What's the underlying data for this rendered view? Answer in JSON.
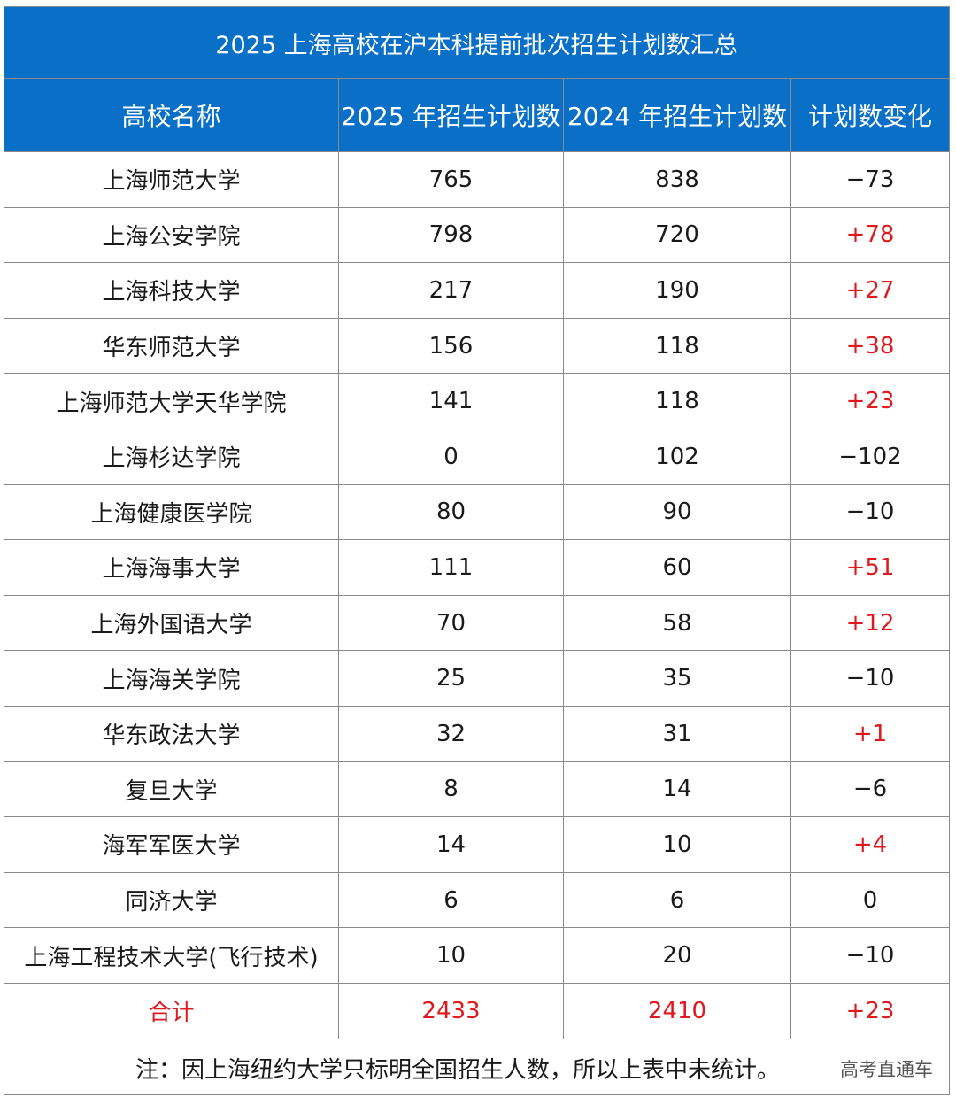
{
  "title": "2025 上海高校在沪本科提前批次招生计划数汇总",
  "headers": [
    "高校名称",
    "2025 年招生计划数",
    "2024 年招生计划数",
    "计划数变化"
  ],
  "rows": [
    {
      "name": "上海师范大学",
      "y2025": "765",
      "y2024": "838",
      "change": "−73",
      "positive": false
    },
    {
      "name": "上海公安学院",
      "y2025": "798",
      "y2024": "720",
      "change": "+78",
      "positive": true
    },
    {
      "name": "上海科技大学",
      "y2025": "217",
      "y2024": "190",
      "change": "+27",
      "positive": true
    },
    {
      "name": "华东师范大学",
      "y2025": "156",
      "y2024": "118",
      "change": "+38",
      "positive": true
    },
    {
      "name": "上海师范大学天华学院",
      "y2025": "141",
      "y2024": "118",
      "change": "+23",
      "positive": true
    },
    {
      "name": "上海杉达学院",
      "y2025": "0",
      "y2024": "102",
      "change": "−102",
      "positive": false
    },
    {
      "name": "上海健康医学院",
      "y2025": "80",
      "y2024": "90",
      "change": "−10",
      "positive": false
    },
    {
      "name": "上海海事大学",
      "y2025": "111",
      "y2024": "60",
      "change": "+51",
      "positive": true
    },
    {
      "name": "上海外国语大学",
      "y2025": "70",
      "y2024": "58",
      "change": "+12",
      "positive": true
    },
    {
      "name": "上海海关学院",
      "y2025": "25",
      "y2024": "35",
      "change": "−10",
      "positive": false
    },
    {
      "name": "华东政法大学",
      "y2025": "32",
      "y2024": "31",
      "change": "+1",
      "positive": true
    },
    {
      "name": "复旦大学",
      "y2025": "8",
      "y2024": "14",
      "change": "−6",
      "positive": false
    },
    {
      "name": "海军军医大学",
      "y2025": "14",
      "y2024": "10",
      "change": "+4",
      "positive": true
    },
    {
      "name": "同济大学",
      "y2025": "6",
      "y2024": "6",
      "change": "0",
      "positive": false
    },
    {
      "name": "上海工程技术大学(飞行技术)",
      "y2025": "10",
      "y2024": "20",
      "change": "−10",
      "positive": false
    }
  ],
  "total": {
    "name": "合计",
    "y2025": "2433",
    "y2024": "2410",
    "change": "+23"
  },
  "note": "注：因上海纽约大学只标明全国招生人数，所以上表中未统计。",
  "watermark": "高考直通车",
  "colors": {
    "header_bg": "#0a6fc6",
    "positive_change": "#e0191e"
  }
}
